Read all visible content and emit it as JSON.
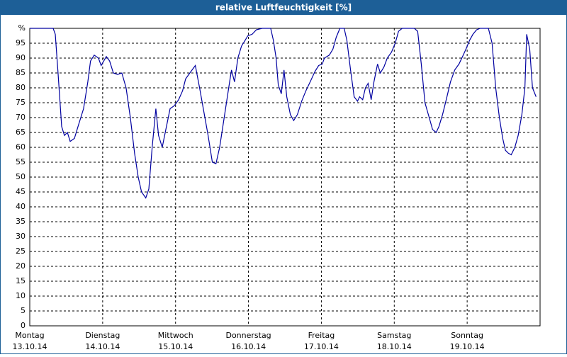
{
  "chart_data": {
    "type": "line",
    "title": "relative Luftfeuchtigkeit [%]",
    "xlim": [
      0,
      168
    ],
    "xticks": [
      {
        "value": 0,
        "label": "Montag",
        "date": "13.10.14"
      },
      {
        "value": 24,
        "label": "Dienstag",
        "date": "14.10.14"
      },
      {
        "value": 48,
        "label": "Mittwoch",
        "date": "15.10.14"
      },
      {
        "value": 72,
        "label": "Donnerstag",
        "date": "16.10.14"
      },
      {
        "value": 96,
        "label": "Freitag",
        "date": "17.10.14"
      },
      {
        "value": 120,
        "label": "Samstag",
        "date": "18.10.14"
      },
      {
        "value": 144,
        "label": "Sonntag",
        "date": "19.10.14"
      }
    ],
    "ylim": [
      0,
      100
    ],
    "yticks": [
      0,
      5,
      10,
      15,
      20,
      25,
      30,
      35,
      40,
      45,
      50,
      55,
      60,
      65,
      70,
      75,
      80,
      85,
      90,
      95,
      {
        "value": 100,
        "label": "%"
      }
    ],
    "grid": true,
    "series": [
      {
        "color": "#0000a0",
        "x": [
          0,
          7.7,
          8.4,
          9.3,
          10.5,
          11.4,
          12.4,
          13.3,
          14.7,
          15.9,
          17.7,
          19.1,
          20.0,
          21.2,
          22.6,
          23.5,
          25.2,
          26.3,
          27.5,
          28.9,
          30.3,
          31.7,
          33.1,
          34.5,
          35.7,
          36.8,
          38.2,
          39.2,
          40.3,
          41.5,
          42.4,
          43.6,
          44.8,
          46.2,
          47.6,
          49.0,
          50.3,
          51.3,
          52.7,
          54.5,
          55.9,
          57.3,
          58.7,
          60.1,
          61.3,
          62.5,
          64.3,
          65.5,
          66.4,
          67.4,
          68.5,
          69.7,
          70.9,
          71.8,
          73.2,
          74.6,
          76.5,
          79.3,
          80.2,
          81.1,
          81.8,
          82.8,
          83.7,
          84.6,
          85.8,
          86.9,
          88.1,
          89.5,
          90.9,
          92.3,
          93.9,
          95.1,
          96.3,
          97.0,
          98.6,
          99.8,
          100.9,
          102.1,
          103.5,
          104.4,
          105.6,
          106.8,
          107.9,
          108.6,
          109.6,
          110.5,
          111.4,
          112.4,
          113.3,
          114.5,
          115.4,
          116.6,
          117.7,
          119.1,
          120.3,
          121.4,
          122.6,
          126.6,
          127.7,
          128.9,
          130.1,
          131.5,
          132.6,
          133.8,
          134.7,
          135.9,
          137.1,
          138.5,
          139.9,
          141.3,
          142.7,
          143.6,
          144.8,
          145.9,
          147.1,
          148.3,
          151.0,
          152.2,
          153.4,
          154.6,
          155.7,
          156.6,
          157.6,
          158.5,
          159.7,
          160.8,
          162.0,
          163.0,
          163.6,
          164.6,
          165.5,
          166.7
        ],
        "values": [
          100,
          100,
          98,
          85,
          67,
          64,
          65,
          62,
          63,
          67,
          73,
          82,
          89,
          91,
          90,
          87.5,
          90.5,
          89,
          85,
          84.5,
          85,
          80,
          70,
          58,
          50,
          45,
          43,
          46,
          60,
          73,
          64,
          60,
          66,
          73,
          74,
          76,
          79,
          83,
          85,
          87.5,
          80,
          72,
          64,
          55,
          54.5,
          60,
          72,
          80,
          86,
          82,
          90,
          94,
          96,
          97.5,
          98,
          99.5,
          100,
          100,
          96,
          90,
          81,
          78,
          86,
          77,
          71,
          69,
          71,
          75.5,
          79,
          82,
          85.5,
          87.5,
          88,
          90,
          91,
          93,
          97,
          100,
          100,
          96,
          86,
          77,
          75.5,
          77,
          76,
          80,
          81.5,
          76,
          82,
          88,
          85,
          87,
          90,
          92,
          95,
          99,
          100,
          100,
          99,
          88,
          75,
          70,
          66,
          65,
          67,
          71,
          76,
          82,
          86,
          88,
          91,
          93,
          96,
          98,
          99.5,
          100,
          100,
          95,
          80,
          70,
          63,
          59,
          58,
          57.5,
          60,
          64,
          71,
          80,
          98,
          93,
          80,
          77
        ]
      }
    ]
  }
}
